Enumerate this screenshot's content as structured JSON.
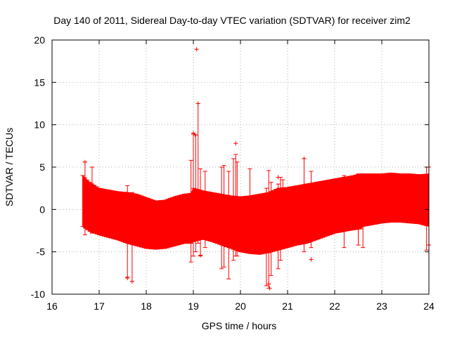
{
  "chart_data": {
    "type": "scatter",
    "title": "Day 140 of 2011, Sidereal Day-to-day VTEC variation (SDTVAR) for receiver zim2",
    "xlabel": "GPS time / hours",
    "ylabel": "SDTVAR / TECUs",
    "xlim": [
      16,
      24
    ],
    "ylim": [
      -10,
      20
    ],
    "xticks": [
      "16",
      "17",
      "18",
      "19",
      "20",
      "21",
      "22",
      "23",
      "24"
    ],
    "yticks": [
      "-10",
      "-5",
      "0",
      "5",
      "10",
      "15",
      "20"
    ],
    "grid": true,
    "legend": "none",
    "series_color": "#ff0000",
    "envelope": {
      "description": "dense band of error bars (min/max SDTVAR per time)",
      "x": [
        16.65,
        16.8,
        17.0,
        17.2,
        17.4,
        17.6,
        17.8,
        18.0,
        18.2,
        18.4,
        18.6,
        18.8,
        18.95,
        19.0,
        19.2,
        19.4,
        19.6,
        19.8,
        20.0,
        20.2,
        20.4,
        20.6,
        20.8,
        21.0,
        21.2,
        21.4,
        21.6,
        21.8,
        22.0,
        22.2,
        22.4,
        22.55,
        22.6,
        22.8,
        23.0,
        23.2,
        23.4,
        23.6,
        23.8,
        24.0
      ],
      "upper": [
        4.0,
        3.2,
        2.5,
        2.3,
        2.1,
        2.0,
        1.8,
        1.4,
        1.0,
        1.1,
        1.5,
        1.8,
        1.9,
        2.5,
        2.2,
        2.0,
        1.8,
        1.6,
        1.5,
        1.6,
        1.8,
        2.0,
        2.5,
        2.6,
        2.8,
        3.0,
        3.2,
        3.4,
        3.6,
        3.8,
        4.0,
        4.2,
        4.2,
        4.2,
        4.2,
        4.3,
        4.2,
        4.2,
        4.1,
        4.2
      ],
      "lower": [
        -2.0,
        -2.6,
        -3.0,
        -3.3,
        -3.6,
        -4.0,
        -4.3,
        -4.6,
        -4.7,
        -4.6,
        -4.3,
        -4.0,
        -4.0,
        -3.8,
        -3.5,
        -3.8,
        -4.2,
        -4.6,
        -5.0,
        -5.2,
        -5.3,
        -5.1,
        -4.8,
        -4.5,
        -4.2,
        -4.0,
        -3.6,
        -3.2,
        -2.8,
        -2.6,
        -2.4,
        -2.3,
        -2.0,
        -1.8,
        -1.6,
        -1.5,
        -1.5,
        -1.6,
        -1.7,
        -2.0
      ]
    },
    "spikes": [
      {
        "x": 16.7,
        "lo": -3.0,
        "hi": 5.6
      },
      {
        "x": 16.85,
        "lo": -2.8,
        "hi": 5.0
      },
      {
        "x": 17.6,
        "lo": -8.0,
        "hi": 2.8
      },
      {
        "x": 17.7,
        "lo": -8.5,
        "hi": 2.0
      },
      {
        "x": 18.95,
        "lo": -6.2,
        "hi": 5.8
      },
      {
        "x": 19.0,
        "lo": -5.5,
        "hi": 8.9
      },
      {
        "x": 19.05,
        "lo": -5.0,
        "hi": 8.8
      },
      {
        "x": 19.1,
        "lo": -4.0,
        "hi": 12.5
      },
      {
        "x": 19.15,
        "lo": -5.5,
        "hi": 4.8
      },
      {
        "x": 19.25,
        "lo": -4.5,
        "hi": 4.5
      },
      {
        "x": 19.6,
        "lo": -7.0,
        "hi": 5.0
      },
      {
        "x": 19.65,
        "lo": -6.8,
        "hi": 5.2
      },
      {
        "x": 19.75,
        "lo": -8.2,
        "hi": 4.5
      },
      {
        "x": 19.85,
        "lo": -6.0,
        "hi": 6.0
      },
      {
        "x": 19.9,
        "lo": -5.5,
        "hi": 6.5
      },
      {
        "x": 19.93,
        "lo": -5.5,
        "hi": 5.6
      },
      {
        "x": 20.2,
        "lo": -5.2,
        "hi": 4.8
      },
      {
        "x": 20.55,
        "lo": -9.0,
        "hi": 2.5
      },
      {
        "x": 20.6,
        "lo": -9.3,
        "hi": 4.6
      },
      {
        "x": 20.65,
        "lo": -7.8,
        "hi": 3.2
      },
      {
        "x": 20.8,
        "lo": -7.0,
        "hi": 3.0
      },
      {
        "x": 20.85,
        "lo": -6.0,
        "hi": 3.8
      },
      {
        "x": 20.9,
        "lo": -4.5,
        "hi": 3.5
      },
      {
        "x": 21.35,
        "lo": -5.0,
        "hi": 6.0
      },
      {
        "x": 21.5,
        "lo": -4.5,
        "hi": 4.5
      },
      {
        "x": 22.2,
        "lo": -4.5,
        "hi": 4.0
      },
      {
        "x": 22.5,
        "lo": -4.2,
        "hi": 4.2
      },
      {
        "x": 22.6,
        "lo": -4.5,
        "hi": 4.2
      },
      {
        "x": 23.95,
        "lo": -4.8,
        "hi": 5.0
      },
      {
        "x": 24.0,
        "lo": -4.2,
        "hi": 5.0
      }
    ],
    "outliers": [
      {
        "x": 19.07,
        "y": 18.9
      },
      {
        "x": 19.1,
        "y": 12.5
      },
      {
        "x": 19.0,
        "y": 9.0
      },
      {
        "x": 19.04,
        "y": 8.8
      },
      {
        "x": 19.9,
        "y": 7.8
      },
      {
        "x": 17.6,
        "y": -8.1
      },
      {
        "x": 17.7,
        "y": -8.5
      },
      {
        "x": 20.6,
        "y": -8.8
      },
      {
        "x": 20.62,
        "y": -9.3
      },
      {
        "x": 21.5,
        "y": -5.9
      },
      {
        "x": 19.15,
        "y": -5.4
      },
      {
        "x": 16.7,
        "y": 5.6
      },
      {
        "x": 21.35,
        "y": 6.0
      },
      {
        "x": 20.8,
        "y": 3.8
      }
    ]
  }
}
